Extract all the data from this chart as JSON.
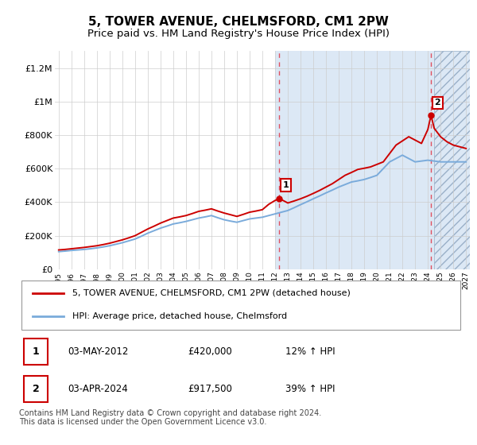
{
  "title": "5, TOWER AVENUE, CHELMSFORD, CM1 2PW",
  "subtitle": "Price paid vs. HM Land Registry's House Price Index (HPI)",
  "ylim": [
    0,
    1300000
  ],
  "yticks": [
    0,
    200000,
    400000,
    600000,
    800000,
    1000000,
    1200000
  ],
  "ytick_labels": [
    "£0",
    "£200K",
    "£400K",
    "£600K",
    "£800K",
    "£1M",
    "£1.2M"
  ],
  "background_color": "#ffffff",
  "plot_bg_color": "#ffffff",
  "plot_bg_right_color": "#dce8f5",
  "grid_color": "#cccccc",
  "hpi_line_color": "#7aabdb",
  "price_line_color": "#cc0000",
  "hatch_color": "#aabbcc",
  "sale1_date": "03-MAY-2012",
  "sale1_price": 420000,
  "sale1_hpi_pct": "12%",
  "sale2_date": "03-APR-2024",
  "sale2_price": 917500,
  "sale2_hpi_pct": "39%",
  "sale1_year": 2012.33,
  "sale2_year": 2024.25,
  "legend_label1": "5, TOWER AVENUE, CHELMSFORD, CM1 2PW (detached house)",
  "legend_label2": "HPI: Average price, detached house, Chelmsford",
  "footer": "Contains HM Land Registry data © Crown copyright and database right 2024.\nThis data is licensed under the Open Government Licence v3.0.",
  "title_fontsize": 11,
  "subtitle_fontsize": 9.5,
  "xmin": 1995,
  "xmax": 2027,
  "hatch_start": 2024.5,
  "blue_bg_start": 2012.0,
  "hpi_years": [
    1995,
    1995.5,
    1996,
    1996.5,
    1997,
    1997.5,
    1998,
    1998.5,
    1999,
    1999.5,
    2000,
    2000.5,
    2001,
    2001.5,
    2002,
    2002.5,
    2003,
    2003.5,
    2004,
    2004.5,
    2005,
    2005.5,
    2006,
    2006.5,
    2007,
    2007.5,
    2008,
    2008.5,
    2009,
    2009.5,
    2010,
    2010.5,
    2011,
    2011.5,
    2012,
    2012.5,
    2013,
    2013.5,
    2014,
    2014.5,
    2015,
    2015.5,
    2016,
    2016.5,
    2017,
    2017.5,
    2018,
    2018.5,
    2019,
    2019.5,
    2020,
    2020.5,
    2021,
    2021.5,
    2022,
    2022.5,
    2023,
    2023.5,
    2024,
    2024.5,
    2025,
    2025.5,
    2026,
    2026.5,
    2027
  ],
  "hpi_values": [
    105000,
    108000,
    112000,
    115000,
    118000,
    122000,
    127000,
    133000,
    140000,
    149000,
    158000,
    169000,
    180000,
    197000,
    215000,
    230000,
    245000,
    257000,
    270000,
    277000,
    285000,
    295000,
    305000,
    312000,
    320000,
    307000,
    295000,
    287000,
    280000,
    290000,
    300000,
    305000,
    310000,
    320000,
    330000,
    340000,
    350000,
    367000,
    385000,
    402000,
    420000,
    437000,
    455000,
    472000,
    490000,
    505000,
    520000,
    527000,
    535000,
    547000,
    560000,
    600000,
    640000,
    660000,
    680000,
    660000,
    640000,
    645000,
    650000,
    645000,
    640000,
    640000,
    640000,
    640000,
    640000
  ],
  "price_years": [
    1995,
    1995.5,
    1996,
    1996.5,
    1997,
    1997.5,
    1998,
    1998.5,
    1999,
    1999.5,
    2000,
    2000.5,
    2001,
    2001.5,
    2002,
    2002.5,
    2003,
    2003.5,
    2004,
    2004.5,
    2005,
    2005.5,
    2006,
    2006.5,
    2007,
    2007.5,
    2008,
    2008.5,
    2009,
    2009.5,
    2010,
    2010.5,
    2011,
    2011.5,
    2012,
    2012.33,
    2012.5,
    2013,
    2013.5,
    2014,
    2014.5,
    2015,
    2015.5,
    2016,
    2016.5,
    2017,
    2017.5,
    2018,
    2018.5,
    2019,
    2019.5,
    2020,
    2020.5,
    2021,
    2021.5,
    2022,
    2022.5,
    2023,
    2023.5,
    2024,
    2024.25,
    2024.5,
    2025,
    2025.5,
    2026,
    2026.5,
    2027
  ],
  "price_values": [
    115000,
    118000,
    122000,
    126000,
    130000,
    135000,
    140000,
    147000,
    155000,
    165000,
    175000,
    187000,
    200000,
    220000,
    240000,
    257000,
    275000,
    290000,
    305000,
    312000,
    320000,
    332000,
    345000,
    352000,
    360000,
    347000,
    335000,
    325000,
    315000,
    327000,
    340000,
    347000,
    355000,
    387000,
    410000,
    420000,
    415000,
    395000,
    407000,
    420000,
    435000,
    452000,
    470000,
    490000,
    510000,
    535000,
    560000,
    577000,
    595000,
    602000,
    610000,
    625000,
    640000,
    690000,
    740000,
    765000,
    790000,
    770000,
    750000,
    833000,
    917500,
    840000,
    790000,
    760000,
    740000,
    730000,
    720000
  ]
}
